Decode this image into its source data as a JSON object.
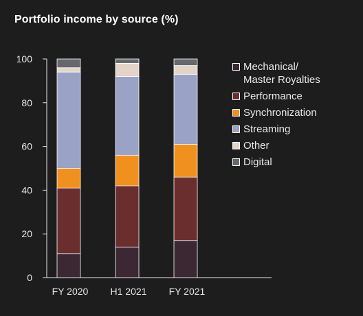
{
  "title": "Portfolio income by source (%)",
  "chart_data": {
    "type": "bar",
    "stacked": true,
    "categories": [
      "FY 2020",
      "H1 2021",
      "FY 2021"
    ],
    "ylim": [
      0,
      100
    ],
    "yticks": [
      "0",
      "20",
      "40",
      "60",
      "80",
      "100"
    ],
    "legend_position": "right",
    "series": [
      {
        "name": "Mechanical/\nMaster Royalties",
        "color": "#3b2833",
        "values": [
          11,
          14,
          17
        ]
      },
      {
        "name": "Performance",
        "color": "#6b2e2e",
        "values": [
          30,
          28,
          29
        ]
      },
      {
        "name": "Synchronization",
        "color": "#f0901e",
        "values": [
          9,
          14,
          15
        ]
      },
      {
        "name": "Streaming",
        "color": "#9aa3c5",
        "values": [
          44,
          36,
          32
        ]
      },
      {
        "name": "Other",
        "color": "#e2d4c8",
        "values": [
          2,
          6,
          4
        ]
      },
      {
        "name": "Digital",
        "color": "#66686d",
        "values": [
          4,
          2,
          3
        ]
      }
    ]
  }
}
